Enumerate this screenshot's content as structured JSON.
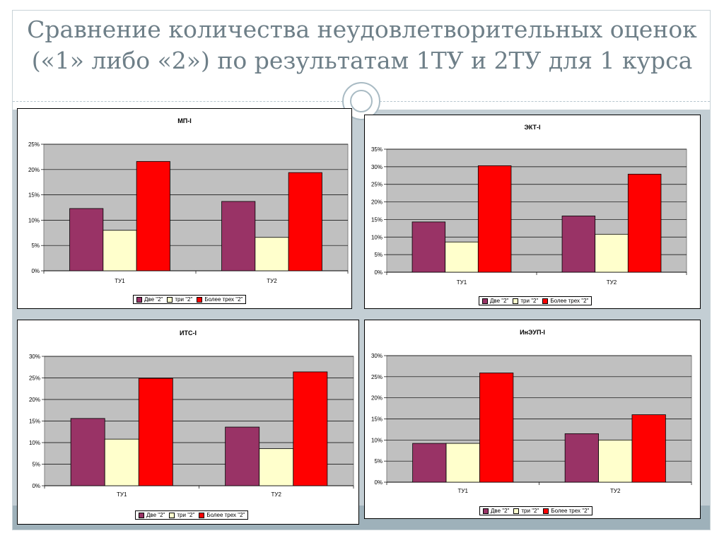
{
  "slide": {
    "title_line1": "Сравнение количества неудовлетворительных оценок",
    "title_line2": "(«1» либо «2») по результатам 1ТУ и 2ТУ для 1 курса"
  },
  "colors": {
    "series": [
      "#993366",
      "#ffffcc",
      "#ff0000"
    ],
    "plot_bg": "#c0c0c0",
    "title": "#6e7f88"
  },
  "chart_data": [
    {
      "type": "bar",
      "title": "МП-I",
      "categories": [
        "ТУ1",
        "ТУ2"
      ],
      "series": [
        {
          "name": "Две \"2\"",
          "values": [
            12.3,
            13.7
          ]
        },
        {
          "name": "три \"2\"",
          "values": [
            8.0,
            6.6
          ]
        },
        {
          "name": "Более трех \"2\"",
          "values": [
            21.6,
            19.4
          ]
        }
      ],
      "ylim": [
        0,
        25
      ],
      "yticks": [
        "0%",
        "5%",
        "10%",
        "15%",
        "20%",
        "25%"
      ],
      "legend": "bottom",
      "grid": true
    },
    {
      "type": "bar",
      "title": "ЭКТ-I",
      "categories": [
        "ТУ1",
        "ТУ2"
      ],
      "series": [
        {
          "name": "Две \"2\"",
          "values": [
            14.3,
            16.0
          ]
        },
        {
          "name": "три \"2\"",
          "values": [
            8.6,
            10.8
          ]
        },
        {
          "name": "Более трех \"2\"",
          "values": [
            30.3,
            27.9
          ]
        }
      ],
      "ylim": [
        0,
        35
      ],
      "yticks": [
        "0%",
        "5%",
        "10%",
        "15%",
        "20%",
        "25%",
        "30%",
        "35%"
      ],
      "legend": "bottom",
      "grid": true
    },
    {
      "type": "bar",
      "title": "ИТС-I",
      "categories": [
        "ТУ1",
        "ТУ2"
      ],
      "series": [
        {
          "name": "Две \"2\"",
          "values": [
            15.6,
            13.6
          ]
        },
        {
          "name": "три \"2\"",
          "values": [
            10.8,
            8.6
          ]
        },
        {
          "name": "Более трех \"2\"",
          "values": [
            24.9,
            26.4
          ]
        }
      ],
      "ylim": [
        0,
        30
      ],
      "yticks": [
        "0%",
        "5%",
        "10%",
        "15%",
        "20%",
        "25%",
        "30%"
      ],
      "legend": "bottom",
      "grid": true
    },
    {
      "type": "bar",
      "title": "ИнЭУП-I",
      "categories": [
        "ТУ1",
        "ТУ2"
      ],
      "series": [
        {
          "name": "Две \"2\"",
          "values": [
            9.2,
            11.5
          ]
        },
        {
          "name": "три \"2\"",
          "values": [
            9.2,
            10.0
          ]
        },
        {
          "name": "Более трех \"2\"",
          "values": [
            25.9,
            16.0
          ]
        }
      ],
      "ylim": [
        0,
        30
      ],
      "yticks": [
        "0%",
        "5%",
        "10%",
        "15%",
        "20%",
        "25%",
        "30%"
      ],
      "legend": "bottom",
      "grid": true
    }
  ]
}
